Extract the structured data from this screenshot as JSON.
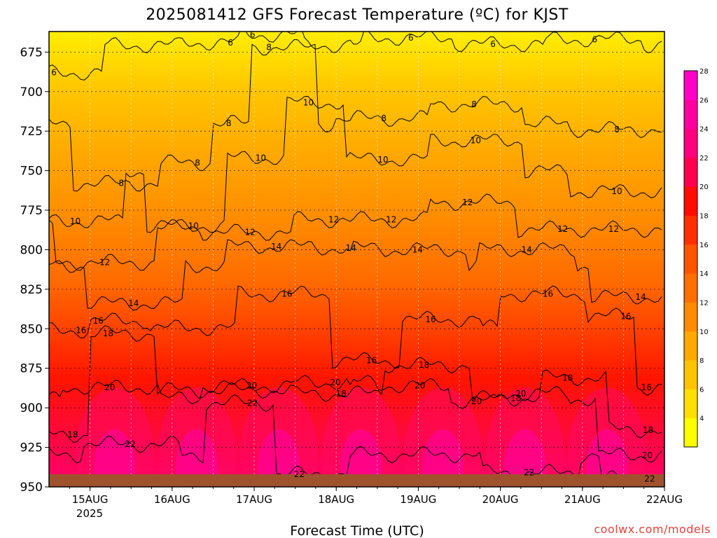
{
  "chart_data": {
    "type": "heatmap",
    "title": "2025081412 GFS Forecast Temperature (ºC) for KJST",
    "xlabel": "Forecast Time (UTC)",
    "ylabel": "",
    "credit": "coolwx.com/models",
    "x_ticks": [
      "15AUG",
      "16AUG",
      "17AUG",
      "18AUG",
      "19AUG",
      "20AUG",
      "21AUG",
      "22AUG"
    ],
    "x_year_label": "2025",
    "xlim_days": [
      14.5,
      22.0
    ],
    "y_ticks": [
      675,
      700,
      725,
      750,
      775,
      800,
      825,
      850,
      875,
      900,
      925,
      950
    ],
    "ylim_hpa": [
      950,
      662
    ],
    "y_inverted": true,
    "colorbar_levels": [
      4,
      6,
      8,
      10,
      12,
      14,
      16,
      18,
      20,
      22,
      24,
      26,
      28
    ],
    "colorbar_colors": [
      "#ffff00",
      "#ffe000",
      "#ffc400",
      "#ffa800",
      "#ff8c00",
      "#ff7000",
      "#ff5400",
      "#ff3000",
      "#ff0c00",
      "#ff0050",
      "#ff0080",
      "#ff00a0",
      "#ff00c8"
    ],
    "ground_color": "#a0522d",
    "grid": true,
    "isotherm_labels": [
      {
        "value": "6",
        "x_day": 14.56,
        "y_hpa": 688
      },
      {
        "value": "6",
        "x_day": 16.71,
        "y_hpa": 669
      },
      {
        "value": "6",
        "x_day": 16.98,
        "y_hpa": 664
      },
      {
        "value": "6",
        "x_day": 18.91,
        "y_hpa": 666
      },
      {
        "value": "6",
        "x_day": 19.91,
        "y_hpa": 670
      },
      {
        "value": "6",
        "x_day": 21.15,
        "y_hpa": 667
      },
      {
        "value": "8",
        "x_day": 17.18,
        "y_hpa": 672
      },
      {
        "value": "8",
        "x_day": 16.31,
        "y_hpa": 745
      },
      {
        "value": "8",
        "x_day": 15.38,
        "y_hpa": 758
      },
      {
        "value": "8",
        "x_day": 16.69,
        "y_hpa": 720
      },
      {
        "value": "8",
        "x_day": 18.58,
        "y_hpa": 717
      },
      {
        "value": "8",
        "x_day": 19.68,
        "y_hpa": 708
      },
      {
        "value": "8",
        "x_day": 21.42,
        "y_hpa": 724
      },
      {
        "value": "10",
        "x_day": 14.82,
        "y_hpa": 782
      },
      {
        "value": "10",
        "x_day": 16.26,
        "y_hpa": 785
      },
      {
        "value": "10",
        "x_day": 17.08,
        "y_hpa": 742
      },
      {
        "value": "10",
        "x_day": 17.66,
        "y_hpa": 707
      },
      {
        "value": "10",
        "x_day": 18.57,
        "y_hpa": 743
      },
      {
        "value": "10",
        "x_day": 19.7,
        "y_hpa": 731
      },
      {
        "value": "10",
        "x_day": 21.42,
        "y_hpa": 763
      },
      {
        "value": "12",
        "x_day": 15.18,
        "y_hpa": 808
      },
      {
        "value": "12",
        "x_day": 16.95,
        "y_hpa": 789
      },
      {
        "value": "12",
        "x_day": 17.97,
        "y_hpa": 781
      },
      {
        "value": "12",
        "x_day": 18.67,
        "y_hpa": 781
      },
      {
        "value": "12",
        "x_day": 19.6,
        "y_hpa": 770
      },
      {
        "value": "12",
        "x_day": 20.76,
        "y_hpa": 787
      },
      {
        "value": "12",
        "x_day": 21.38,
        "y_hpa": 787
      },
      {
        "value": "14",
        "x_day": 15.53,
        "y_hpa": 834
      },
      {
        "value": "14",
        "x_day": 17.27,
        "y_hpa": 798
      },
      {
        "value": "14",
        "x_day": 18.18,
        "y_hpa": 799
      },
      {
        "value": "14",
        "x_day": 18.99,
        "y_hpa": 800
      },
      {
        "value": "14",
        "x_day": 20.32,
        "y_hpa": 800
      },
      {
        "value": "14",
        "x_day": 21.71,
        "y_hpa": 830
      },
      {
        "value": "16",
        "x_day": 14.89,
        "y_hpa": 851
      },
      {
        "value": "16",
        "x_day": 15.1,
        "y_hpa": 845
      },
      {
        "value": "16",
        "x_day": 17.4,
        "y_hpa": 828
      },
      {
        "value": "16",
        "x_day": 18.43,
        "y_hpa": 870
      },
      {
        "value": "16",
        "x_day": 19.15,
        "y_hpa": 844
      },
      {
        "value": "16",
        "x_day": 20.58,
        "y_hpa": 828
      },
      {
        "value": "16",
        "x_day": 21.53,
        "y_hpa": 842
      },
      {
        "value": "16",
        "x_day": 21.78,
        "y_hpa": 887
      },
      {
        "value": "18",
        "x_day": 15.22,
        "y_hpa": 853
      },
      {
        "value": "18",
        "x_day": 14.79,
        "y_hpa": 917
      },
      {
        "value": "18",
        "x_day": 18.06,
        "y_hpa": 891
      },
      {
        "value": "18",
        "x_day": 19.07,
        "y_hpa": 873
      },
      {
        "value": "18",
        "x_day": 20.19,
        "y_hpa": 894
      },
      {
        "value": "18",
        "x_day": 20.82,
        "y_hpa": 881
      },
      {
        "value": "18",
        "x_day": 21.8,
        "y_hpa": 914
      },
      {
        "value": "20",
        "x_day": 15.24,
        "y_hpa": 887
      },
      {
        "value": "20",
        "x_day": 16.97,
        "y_hpa": 886
      },
      {
        "value": "20",
        "x_day": 17.99,
        "y_hpa": 884
      },
      {
        "value": "20",
        "x_day": 19.02,
        "y_hpa": 886
      },
      {
        "value": "20",
        "x_day": 19.71,
        "y_hpa": 896
      },
      {
        "value": "20",
        "x_day": 20.25,
        "y_hpa": 891
      },
      {
        "value": "20",
        "x_day": 21.79,
        "y_hpa": 930
      },
      {
        "value": "22",
        "x_day": 15.49,
        "y_hpa": 923
      },
      {
        "value": "22",
        "x_day": 16.98,
        "y_hpa": 897
      },
      {
        "value": "22",
        "x_day": 17.55,
        "y_hpa": 942
      },
      {
        "value": "22",
        "x_day": 20.35,
        "y_hpa": 941
      },
      {
        "value": "22",
        "x_day": 21.82,
        "y_hpa": 945
      }
    ]
  }
}
